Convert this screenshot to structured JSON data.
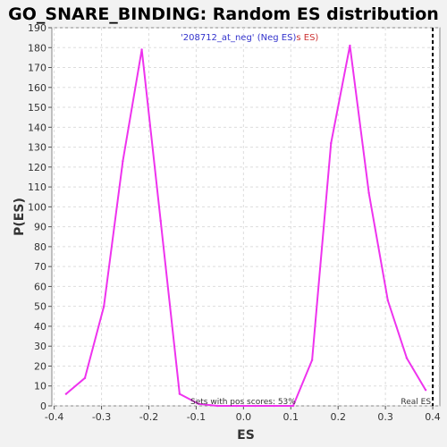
{
  "chart_data": {
    "type": "line",
    "title": "GO_SNARE_BINDING: Random ES distribution",
    "xlabel": "ES",
    "ylabel": "P(ES)",
    "xlim": [
      -0.405,
      0.415
    ],
    "ylim": [
      0,
      190
    ],
    "x_ticks": [
      -0.4,
      -0.3,
      -0.2,
      -0.1,
      0.0,
      0.1,
      0.2,
      0.3,
      0.4
    ],
    "x_tick_labels": [
      "-0.4",
      "-0.3",
      "-0.2",
      "-0.1",
      "0.0",
      "0.1",
      "0.2",
      "0.3",
      "0.4"
    ],
    "y_ticks": [
      0,
      10,
      20,
      30,
      40,
      50,
      60,
      70,
      80,
      90,
      100,
      110,
      120,
      130,
      140,
      150,
      160,
      170,
      180,
      190
    ],
    "y_tick_labels": [
      "0",
      "10",
      "20",
      "30",
      "40",
      "50",
      "60",
      "70",
      "80",
      "90",
      "100",
      "110",
      "120",
      "130",
      "140",
      "150",
      "160",
      "170",
      "180",
      "190"
    ],
    "grid": true,
    "series": [
      {
        "color": "#ee33ee",
        "x": [
          -0.375,
          -0.335,
          -0.295,
          -0.255,
          -0.215,
          -0.175,
          -0.135,
          -0.095,
          -0.055,
          -0.015,
          0.025,
          0.065,
          0.105,
          0.145,
          0.185,
          0.225,
          0.265,
          0.305,
          0.345,
          0.385
        ],
        "y": [
          6,
          14,
          50,
          123,
          179,
          93,
          6,
          1,
          0,
          0,
          0,
          0,
          0,
          23,
          132,
          181,
          107,
          53,
          24,
          8
        ]
      }
    ],
    "legend": {
      "placement": "top-center",
      "neg_text": "'208712_at_neg' (Neg ES)",
      "neg_color": "#3333cc",
      "pos_text": "s ES)",
      "pos_color": "#cc3333"
    },
    "real_es": {
      "x": 0.4,
      "label": "Real ES"
    },
    "annotation": "Sets with pos scores: 53%"
  }
}
